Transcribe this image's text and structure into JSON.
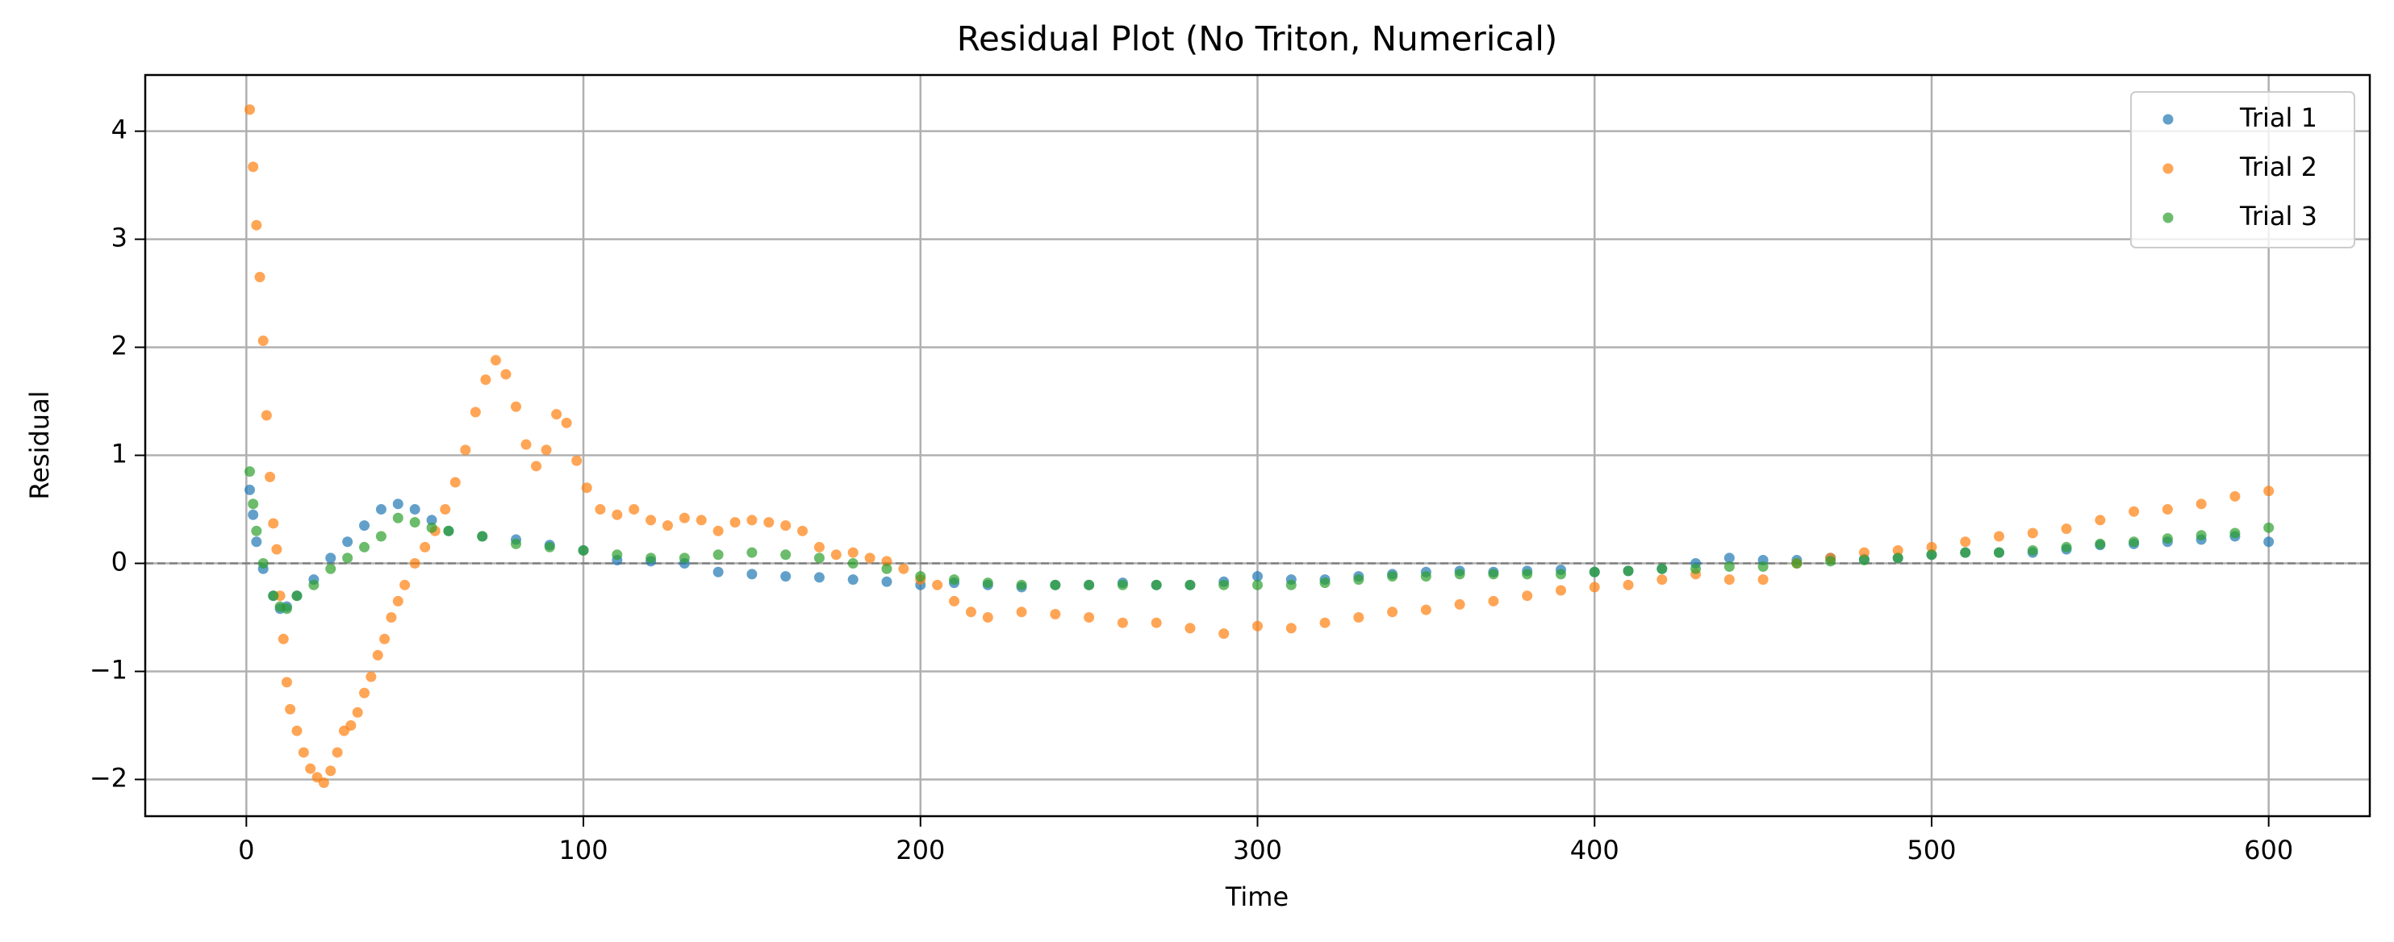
{
  "chart_data": {
    "type": "scatter",
    "title": "Residual Plot (No Triton, Numerical)",
    "x_label": "Time",
    "y_label": "Residual",
    "xlim": [
      -30,
      630
    ],
    "ylim": [
      -2.34,
      4.52
    ],
    "xticks": [
      0,
      100,
      200,
      300,
      400,
      500,
      600
    ],
    "yticks": [
      {
        "value": -2,
        "label": "−2"
      },
      {
        "value": -1,
        "label": "−1"
      },
      0,
      1,
      2,
      3,
      4
    ],
    "grid": true,
    "legend": "upper right",
    "reference_line": {
      "y": 0,
      "color": "#808080"
    },
    "series": [
      {
        "name": "Trial 1",
        "color": "#1f77b4",
        "x": [
          1,
          2,
          3,
          5,
          8,
          10,
          12,
          15,
          20,
          25,
          30,
          35,
          40,
          45,
          50,
          55,
          60,
          70,
          80,
          90,
          100,
          110,
          120,
          130,
          140,
          150,
          160,
          170,
          180,
          190,
          200,
          210,
          220,
          230,
          240,
          250,
          260,
          270,
          280,
          290,
          300,
          310,
          320,
          330,
          340,
          350,
          360,
          370,
          380,
          390,
          400,
          410,
          420,
          430,
          440,
          450,
          460,
          470,
          480,
          490,
          500,
          510,
          520,
          530,
          540,
          550,
          560,
          570,
          580,
          590,
          600
        ],
        "values": [
          0.68,
          0.45,
          0.2,
          -0.05,
          -0.3,
          -0.42,
          -0.4,
          -0.3,
          -0.15,
          0.05,
          0.2,
          0.35,
          0.5,
          0.55,
          0.5,
          0.4,
          0.3,
          0.25,
          0.22,
          0.17,
          0.12,
          0.03,
          0.02,
          0.0,
          -0.08,
          -0.1,
          -0.12,
          -0.13,
          -0.15,
          -0.17,
          -0.2,
          -0.18,
          -0.2,
          -0.22,
          -0.2,
          -0.2,
          -0.18,
          -0.2,
          -0.2,
          -0.17,
          -0.12,
          -0.15,
          -0.15,
          -0.12,
          -0.1,
          -0.08,
          -0.07,
          -0.08,
          -0.07,
          -0.06,
          -0.08,
          -0.07,
          -0.05,
          0.0,
          0.05,
          0.03,
          0.03,
          0.05,
          0.04,
          0.05,
          0.08,
          0.1,
          0.1,
          0.1,
          0.13,
          0.17,
          0.18,
          0.2,
          0.22,
          0.25,
          0.2
        ]
      },
      {
        "name": "Trial 2",
        "color": "#ff7f0e",
        "x": [
          1,
          2,
          3,
          4,
          5,
          6,
          7,
          8,
          9,
          10,
          11,
          12,
          13,
          15,
          17,
          19,
          21,
          23,
          25,
          27,
          29,
          31,
          33,
          35,
          37,
          39,
          41,
          43,
          45,
          47,
          50,
          53,
          56,
          59,
          62,
          65,
          68,
          71,
          74,
          77,
          80,
          83,
          86,
          89,
          92,
          95,
          98,
          101,
          105,
          110,
          115,
          120,
          125,
          130,
          135,
          140,
          145,
          150,
          155,
          160,
          165,
          170,
          175,
          180,
          185,
          190,
          195,
          200,
          205,
          210,
          215,
          220,
          230,
          240,
          250,
          260,
          270,
          280,
          290,
          300,
          310,
          320,
          330,
          340,
          350,
          360,
          370,
          380,
          390,
          400,
          410,
          420,
          430,
          440,
          450,
          460,
          470,
          480,
          490,
          500,
          510,
          520,
          530,
          540,
          550,
          560,
          570,
          580,
          590,
          600
        ],
        "values": [
          4.2,
          3.67,
          3.13,
          2.65,
          2.06,
          1.37,
          0.8,
          0.37,
          0.13,
          -0.3,
          -0.7,
          -1.1,
          -1.35,
          -1.55,
          -1.75,
          -1.9,
          -1.98,
          -2.03,
          -1.92,
          -1.75,
          -1.55,
          -1.5,
          -1.38,
          -1.2,
          -1.05,
          -0.85,
          -0.7,
          -0.5,
          -0.35,
          -0.2,
          0.0,
          0.15,
          0.3,
          0.5,
          0.75,
          1.05,
          1.4,
          1.7,
          1.88,
          1.75,
          1.45,
          1.1,
          0.9,
          1.05,
          1.38,
          1.3,
          0.95,
          0.7,
          0.5,
          0.45,
          0.5,
          0.4,
          0.35,
          0.42,
          0.4,
          0.3,
          0.38,
          0.4,
          0.38,
          0.35,
          0.3,
          0.15,
          0.08,
          0.1,
          0.05,
          0.02,
          -0.05,
          -0.15,
          -0.2,
          -0.35,
          -0.45,
          -0.5,
          -0.45,
          -0.47,
          -0.5,
          -0.55,
          -0.55,
          -0.6,
          -0.65,
          -0.58,
          -0.6,
          -0.55,
          -0.5,
          -0.45,
          -0.43,
          -0.38,
          -0.35,
          -0.3,
          -0.25,
          -0.22,
          -0.2,
          -0.15,
          -0.1,
          -0.15,
          -0.15,
          0.0,
          0.05,
          0.1,
          0.12,
          0.15,
          0.2,
          0.25,
          0.28,
          0.32,
          0.4,
          0.48,
          0.5,
          0.55,
          0.62,
          0.67
        ]
      },
      {
        "name": "Trial 3",
        "color": "#2ca02c",
        "x": [
          1,
          2,
          3,
          5,
          8,
          10,
          12,
          15,
          20,
          25,
          30,
          35,
          40,
          45,
          50,
          55,
          60,
          70,
          80,
          90,
          100,
          110,
          120,
          130,
          140,
          150,
          160,
          170,
          180,
          190,
          200,
          210,
          220,
          230,
          240,
          250,
          260,
          270,
          280,
          290,
          300,
          310,
          320,
          330,
          340,
          350,
          360,
          370,
          380,
          390,
          400,
          410,
          420,
          430,
          440,
          450,
          460,
          470,
          480,
          490,
          500,
          510,
          520,
          530,
          540,
          550,
          560,
          570,
          580,
          590,
          600
        ],
        "values": [
          0.85,
          0.55,
          0.3,
          0.0,
          -0.3,
          -0.4,
          -0.42,
          -0.3,
          -0.2,
          -0.05,
          0.05,
          0.15,
          0.25,
          0.42,
          0.38,
          0.33,
          0.3,
          0.25,
          0.18,
          0.15,
          0.12,
          0.08,
          0.05,
          0.05,
          0.08,
          0.1,
          0.08,
          0.05,
          0.0,
          -0.05,
          -0.12,
          -0.15,
          -0.18,
          -0.2,
          -0.2,
          -0.2,
          -0.2,
          -0.2,
          -0.2,
          -0.2,
          -0.2,
          -0.2,
          -0.18,
          -0.15,
          -0.12,
          -0.12,
          -0.1,
          -0.1,
          -0.1,
          -0.1,
          -0.08,
          -0.07,
          -0.05,
          -0.05,
          -0.03,
          -0.03,
          0.0,
          0.02,
          0.03,
          0.05,
          0.08,
          0.1,
          0.1,
          0.12,
          0.15,
          0.18,
          0.2,
          0.23,
          0.26,
          0.28,
          0.33
        ]
      }
    ]
  }
}
